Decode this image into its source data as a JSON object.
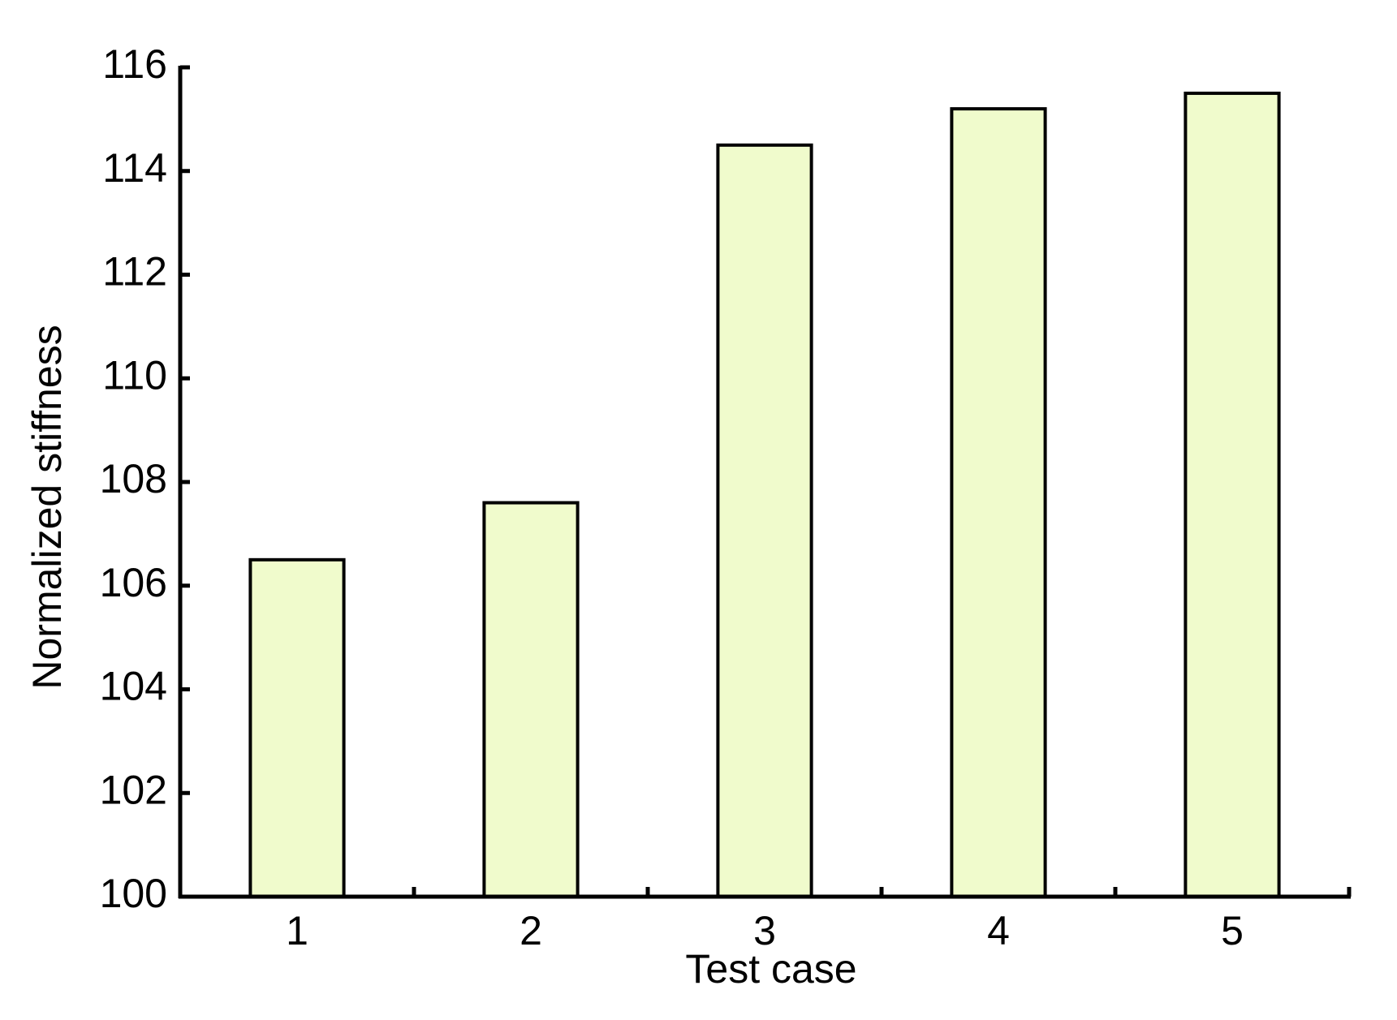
{
  "chart_data": {
    "type": "bar",
    "x_label": "Test case",
    "y_label": "Normalized stiffness",
    "categories": [
      "1",
      "2",
      "3",
      "4",
      "5"
    ],
    "values": [
      106.5,
      107.6,
      114.5,
      115.2,
      115.5
    ],
    "color": "#f0fbcc",
    "ylim": [
      100,
      116
    ],
    "yticks": [
      100,
      102,
      104,
      106,
      108,
      110,
      112,
      114,
      116
    ],
    "grid": false
  }
}
